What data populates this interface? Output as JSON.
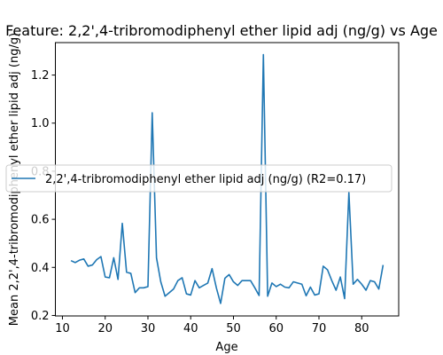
{
  "chart_data": {
    "type": "line",
    "title": "Feature: 2,2',4-tribromodiphenyl ether lipid adj (ng/g) vs Age",
    "xlabel": "Age",
    "ylabel": "Mean 2,2',4-tribromodiphenyl ether lipid adj (ng/g)",
    "xlim": [
      8.35,
      88.65
    ],
    "ylim": [
      0.198,
      1.335
    ],
    "xticks": [
      10,
      20,
      30,
      40,
      50,
      60,
      70,
      80
    ],
    "yticks": [
      0.2,
      0.4,
      0.6,
      0.8,
      1.0,
      1.2
    ],
    "ytick_labels": [
      "0.2",
      "0.4",
      "0.6",
      "0.8",
      "1.0",
      "1.2"
    ],
    "grid": false,
    "legend_position": "center-left",
    "color": "#1f77b4",
    "series": [
      {
        "name": "2,2',4-tribromodiphenyl ether lipid adj (ng/g) (R2=0.17)",
        "x": [
          12,
          13,
          14,
          15,
          16,
          17,
          18,
          19,
          20,
          21,
          22,
          23,
          24,
          25,
          26,
          27,
          28,
          29,
          30,
          31,
          32,
          33,
          34,
          35,
          36,
          37,
          38,
          39,
          40,
          41,
          42,
          43,
          44,
          45,
          46,
          47,
          48,
          49,
          50,
          51,
          52,
          53,
          54,
          55,
          56,
          57,
          58,
          59,
          60,
          61,
          62,
          63,
          64,
          65,
          66,
          67,
          68,
          69,
          70,
          71,
          72,
          73,
          74,
          75,
          76,
          77,
          78,
          79,
          80,
          81,
          82,
          83,
          84,
          85
        ],
        "y": [
          0.428,
          0.42,
          0.43,
          0.435,
          0.405,
          0.41,
          0.432,
          0.445,
          0.36,
          0.357,
          0.44,
          0.35,
          0.583,
          0.38,
          0.375,
          0.295,
          0.315,
          0.315,
          0.32,
          1.043,
          0.44,
          0.34,
          0.28,
          0.295,
          0.31,
          0.345,
          0.357,
          0.29,
          0.285,
          0.345,
          0.315,
          0.325,
          0.335,
          0.395,
          0.315,
          0.25,
          0.355,
          0.37,
          0.34,
          0.325,
          0.345,
          0.345,
          0.345,
          0.315,
          0.283,
          1.285,
          0.28,
          0.335,
          0.32,
          0.33,
          0.318,
          0.315,
          0.34,
          0.335,
          0.33,
          0.282,
          0.318,
          0.285,
          0.29,
          0.405,
          0.39,
          0.345,
          0.305,
          0.36,
          0.27,
          0.712,
          0.33,
          0.35,
          0.33,
          0.305,
          0.345,
          0.34,
          0.31,
          0.41
        ]
      }
    ]
  }
}
